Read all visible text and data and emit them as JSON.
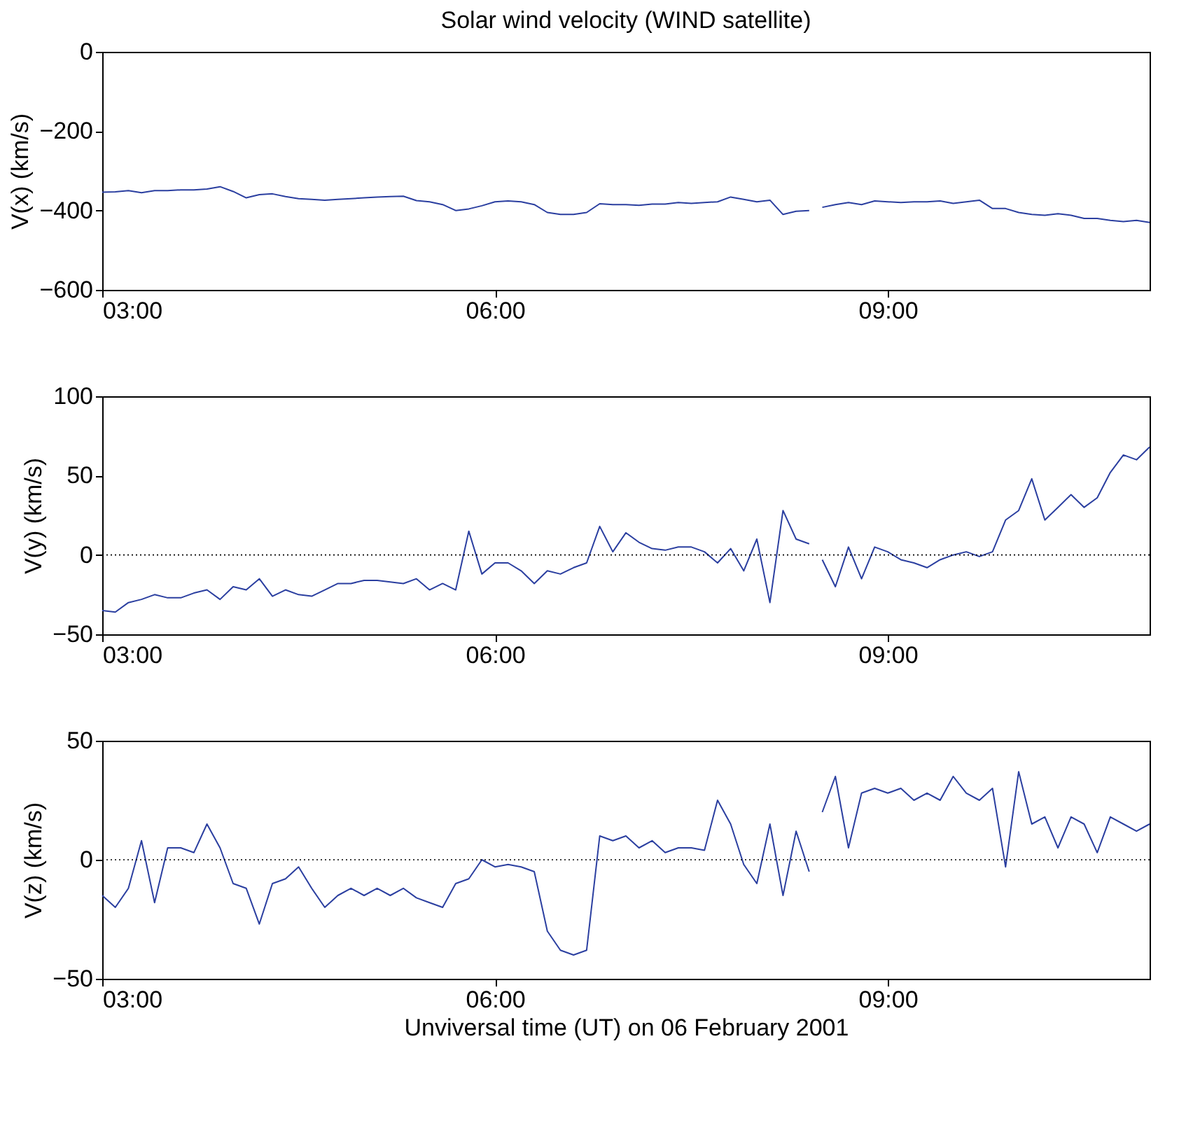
{
  "chart_data": [
    {
      "type": "line",
      "title": "Solar wind velocity (WIND satellite)",
      "ylabel": "V(x) (km/s)",
      "grid": false,
      "x": [
        3.0,
        3.1,
        3.2,
        3.3,
        3.4,
        3.5,
        3.6,
        3.7,
        3.8,
        3.9,
        4.0,
        4.1,
        4.2,
        4.3,
        4.4,
        4.5,
        4.6,
        4.7,
        4.8,
        4.9,
        5.0,
        5.1,
        5.2,
        5.3,
        5.4,
        5.5,
        5.6,
        5.7,
        5.8,
        5.9,
        6.0,
        6.1,
        6.2,
        6.3,
        6.4,
        6.5,
        6.6,
        6.7,
        6.8,
        6.9,
        7.0,
        7.1,
        7.2,
        7.3,
        7.4,
        7.5,
        7.6,
        7.7,
        7.8,
        7.9,
        8.0,
        8.1,
        8.2,
        8.3,
        8.4,
        8.45,
        8.5,
        8.6,
        8.7,
        8.8,
        8.9,
        9.0,
        9.1,
        9.2,
        9.3,
        9.4,
        9.5,
        9.6,
        9.7,
        9.8,
        9.9,
        10.0,
        10.1,
        10.2,
        10.3,
        10.4,
        10.5,
        10.6,
        10.7,
        10.8,
        10.9,
        11.0
      ],
      "series": [
        {
          "color": "#2b3fa0",
          "values": [
            -354,
            -353,
            -350,
            -355,
            -350,
            -350,
            -348,
            -348,
            -346,
            -340,
            -352,
            -368,
            -360,
            -358,
            -365,
            -370,
            -372,
            -374,
            -372,
            -370,
            -368,
            -366,
            -365,
            -364,
            -375,
            -378,
            -385,
            -400,
            -396,
            -388,
            -378,
            -376,
            -378,
            -385,
            -405,
            -410,
            -410,
            -405,
            -383,
            -385,
            -385,
            -387,
            -384,
            -384,
            -380,
            -382,
            -380,
            -378,
            -366,
            -372,
            -378,
            -374,
            -410,
            -402,
            -400,
            null,
            -392,
            -385,
            -380,
            -385,
            -376,
            -378,
            -380,
            -378,
            -378,
            -376,
            -382,
            -378,
            -374,
            -395,
            -395,
            -405,
            -410,
            -412,
            -408,
            -412,
            -420,
            -420,
            -425,
            -428,
            -425,
            -430
          ]
        }
      ],
      "xlim": [
        3,
        11
      ],
      "xticks": [
        {
          "value": 3,
          "label": "03:00"
        },
        {
          "value": 6,
          "label": "06:00"
        },
        {
          "value": 9,
          "label": "09:00"
        }
      ],
      "ylim": [
        -600,
        0
      ],
      "yticks": [
        {
          "value": -600,
          "label": "−600"
        },
        {
          "value": -400,
          "label": "−400"
        },
        {
          "value": -200,
          "label": "−200"
        },
        0
      ]
    },
    {
      "type": "line",
      "ylabel": "V(y) (km/s)",
      "grid": false,
      "x": [
        3.0,
        3.1,
        3.2,
        3.3,
        3.4,
        3.5,
        3.6,
        3.7,
        3.8,
        3.9,
        4.0,
        4.1,
        4.2,
        4.3,
        4.4,
        4.5,
        4.6,
        4.7,
        4.8,
        4.9,
        5.0,
        5.1,
        5.2,
        5.3,
        5.4,
        5.5,
        5.6,
        5.7,
        5.8,
        5.9,
        6.0,
        6.1,
        6.2,
        6.3,
        6.4,
        6.5,
        6.6,
        6.7,
        6.8,
        6.9,
        7.0,
        7.1,
        7.2,
        7.3,
        7.4,
        7.5,
        7.6,
        7.7,
        7.8,
        7.9,
        8.0,
        8.1,
        8.2,
        8.3,
        8.4,
        8.45,
        8.5,
        8.6,
        8.7,
        8.8,
        8.9,
        9.0,
        9.1,
        9.2,
        9.3,
        9.4,
        9.5,
        9.6,
        9.7,
        9.8,
        9.9,
        10.0,
        10.1,
        10.2,
        10.3,
        10.4,
        10.5,
        10.6,
        10.7,
        10.8,
        10.9,
        11.0
      ],
      "series": [
        {
          "color": "#2b3fa0",
          "values": [
            -35,
            -36,
            -30,
            -28,
            -25,
            -27,
            -27,
            -24,
            -22,
            -28,
            -20,
            -22,
            -15,
            -26,
            -22,
            -25,
            -26,
            -22,
            -18,
            -18,
            -16,
            -16,
            -17,
            -18,
            -15,
            -22,
            -18,
            -22,
            15,
            -12,
            -5,
            -5,
            -10,
            -18,
            -10,
            -12,
            -8,
            -5,
            18,
            2,
            14,
            8,
            4,
            3,
            5,
            5,
            2,
            -5,
            4,
            -10,
            10,
            -30,
            28,
            10,
            7,
            null,
            -3,
            -20,
            5,
            -15,
            5,
            2,
            -3,
            -5,
            -8,
            -3,
            0,
            2,
            -1,
            2,
            22,
            28,
            48,
            22,
            30,
            38,
            30,
            36,
            52,
            63,
            60,
            68
          ]
        }
      ],
      "xlim": [
        3,
        11
      ],
      "xticks": [
        {
          "value": 3,
          "label": "03:00"
        },
        {
          "value": 6,
          "label": "06:00"
        },
        {
          "value": 9,
          "label": "09:00"
        }
      ],
      "ylim": [
        -50,
        100
      ],
      "yticks": [
        {
          "value": -50,
          "label": "−50"
        },
        0,
        50,
        100
      ],
      "ref_lines": [
        {
          "axis": "y",
          "value": 0,
          "color": "#000000",
          "line_style": "dotted"
        }
      ]
    },
    {
      "type": "line",
      "ylabel": "V(z) (km/s)",
      "xlabel": "Unviversal time (UT) on 06 February 2001",
      "grid": false,
      "x": [
        3.0,
        3.1,
        3.2,
        3.3,
        3.4,
        3.5,
        3.6,
        3.7,
        3.8,
        3.9,
        4.0,
        4.1,
        4.2,
        4.3,
        4.4,
        4.5,
        4.6,
        4.7,
        4.8,
        4.9,
        5.0,
        5.1,
        5.2,
        5.3,
        5.4,
        5.5,
        5.6,
        5.7,
        5.8,
        5.9,
        6.0,
        6.1,
        6.2,
        6.3,
        6.4,
        6.5,
        6.6,
        6.7,
        6.8,
        6.9,
        7.0,
        7.1,
        7.2,
        7.3,
        7.4,
        7.5,
        7.6,
        7.7,
        7.8,
        7.9,
        8.0,
        8.1,
        8.2,
        8.3,
        8.4,
        8.45,
        8.5,
        8.6,
        8.7,
        8.8,
        8.9,
        9.0,
        9.1,
        9.2,
        9.3,
        9.4,
        9.5,
        9.6,
        9.7,
        9.8,
        9.9,
        10.0,
        10.1,
        10.2,
        10.3,
        10.4,
        10.5,
        10.6,
        10.7,
        10.8,
        10.9,
        11.0
      ],
      "series": [
        {
          "color": "#2b3fa0",
          "values": [
            -15,
            -20,
            -12,
            8,
            -18,
            5,
            5,
            3,
            15,
            5,
            -10,
            -12,
            -27,
            -10,
            -8,
            -3,
            -12,
            -20,
            -15,
            -12,
            -15,
            -12,
            -15,
            -12,
            -16,
            -18,
            -20,
            -10,
            -8,
            0,
            -3,
            -2,
            -3,
            -5,
            -30,
            -38,
            -40,
            -38,
            10,
            8,
            10,
            5,
            8,
            3,
            5,
            5,
            4,
            25,
            15,
            -2,
            -10,
            15,
            -15,
            12,
            -5,
            null,
            20,
            35,
            5,
            28,
            30,
            28,
            30,
            25,
            28,
            25,
            35,
            28,
            25,
            30,
            -3,
            37,
            15,
            18,
            5,
            18,
            15,
            3,
            18,
            15,
            12,
            15
          ]
        }
      ],
      "xlim": [
        3,
        11
      ],
      "xticks": [
        {
          "value": 3,
          "label": "03:00"
        },
        {
          "value": 6,
          "label": "06:00"
        },
        {
          "value": 9,
          "label": "09:00"
        }
      ],
      "ylim": [
        -50,
        50
      ],
      "yticks": [
        {
          "value": -50,
          "label": "−50"
        },
        0,
        50
      ],
      "ref_lines": [
        {
          "axis": "y",
          "value": 0,
          "color": "#000000",
          "line_style": "dotted"
        }
      ]
    }
  ]
}
